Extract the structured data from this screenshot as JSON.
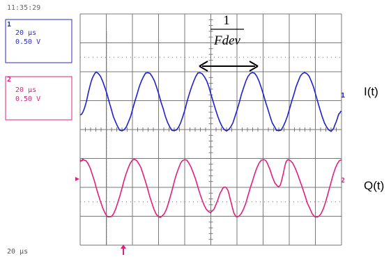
{
  "clock": "11:35:29",
  "channels": [
    {
      "label": "1",
      "timebase": "20 µs",
      "volts": "0.50 V"
    },
    {
      "label": "2",
      "timebase": "20 µs",
      "volts": "0.50 V"
    }
  ],
  "annotation": {
    "numerator": "1",
    "denominator": "Fdev"
  },
  "traces": [
    {
      "marker": "1",
      "name": "I(t)"
    },
    {
      "marker": "2",
      "name": "Q(t)"
    }
  ],
  "footer": "20 µs"
}
